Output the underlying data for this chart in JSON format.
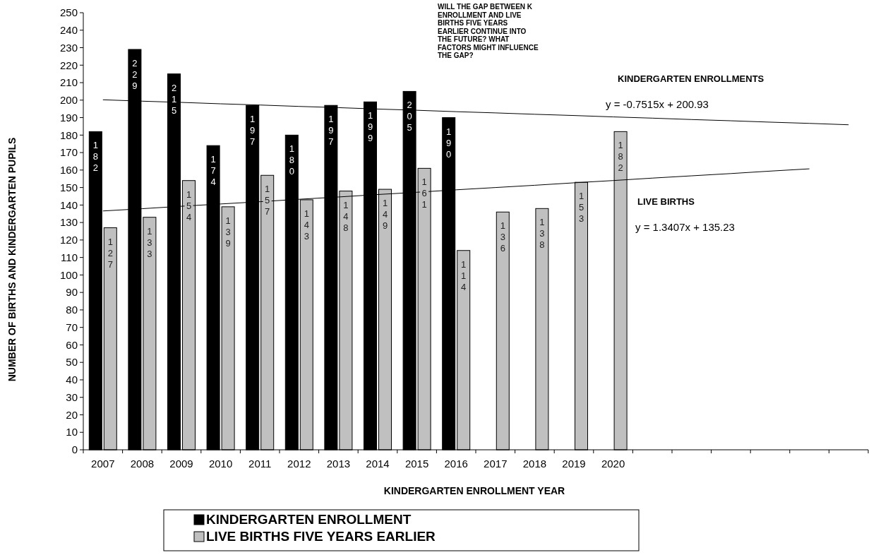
{
  "chart_data": {
    "type": "bar",
    "xlabel": "KINDERGARTEN ENROLLMENT YEAR",
    "ylabel": "NUMBER OF BIRTHS AND KINDERGARTEN PUPILS",
    "categories": [
      "2007",
      "2008",
      "2009",
      "2010",
      "2011",
      "2012",
      "2013",
      "2014",
      "2015",
      "2016",
      "2017",
      "2018",
      "2019",
      "2020",
      null,
      null,
      null,
      null,
      null,
      null
    ],
    "series": [
      {
        "name": "KINDERGARTEN ENROLLMENT",
        "color": "#000000",
        "values": [
          182,
          229,
          215,
          174,
          197,
          180,
          197,
          199,
          205,
          190,
          null,
          null,
          null,
          null,
          null,
          null,
          null,
          null,
          null,
          null
        ],
        "value_labels": [
          "182",
          "229",
          "215",
          "174",
          "197",
          "180",
          "197",
          "199",
          "205",
          "190",
          null,
          null,
          null,
          null,
          null,
          null,
          null,
          null,
          null,
          null
        ]
      },
      {
        "name": "LIVE BIRTHS FIVE YEARS EARLIER",
        "color": "#c0c0c0",
        "values": [
          127,
          133,
          154,
          139,
          157,
          143,
          148,
          149,
          161,
          114,
          136,
          138,
          153,
          182,
          null,
          null,
          null,
          null,
          null,
          null
        ],
        "value_labels": [
          "127",
          "133",
          "154",
          "139",
          "157",
          "143",
          "148",
          "149",
          "161",
          "114",
          "136",
          "138",
          "153",
          "182",
          null,
          null,
          null,
          null,
          null,
          null
        ]
      },
      {
        "type": "line",
        "color": "#000000",
        "values": [
          200.2,
          199.4,
          198.7,
          197.9,
          197.2,
          196.4,
          195.7,
          194.9,
          194.2,
          193.4,
          192.7,
          191.9,
          191.2,
          190.4,
          189.7,
          188.9,
          188.2,
          187.4,
          186.7,
          185.9
        ]
      },
      {
        "type": "line",
        "color": "#000000",
        "values": [
          136.6,
          137.9,
          139.3,
          140.6,
          141.9,
          143.3,
          144.6,
          146.0,
          147.3,
          148.7,
          150.0,
          151.3,
          152.7,
          154.0,
          155.4,
          156.7,
          158.0,
          159.4,
          160.7,
          null
        ]
      }
    ],
    "ylim": [
      0,
      250
    ],
    "yticks": [
      0,
      10,
      20,
      30,
      40,
      50,
      60,
      70,
      80,
      90,
      100,
      110,
      120,
      130,
      140,
      150,
      160,
      170,
      180,
      190,
      200,
      210,
      220,
      230,
      240,
      250
    ],
    "grid": false,
    "legend": "bottom",
    "annotations": [
      "WILL THE GAP BETWEEN K ENROLLMENT AND LIVE BIRTHS FIVE YEARS EARLIER CONTINUE INTO THE FUTURE?  WHAT FACTORS MIGHT INFLUENCE THE GAP?",
      "KINDERGARTEN ENROLLMENTS",
      "y = -0.7515x + 200.93",
      "LIVE BIRTHS",
      "y = 1.3407x + 135.23"
    ]
  }
}
